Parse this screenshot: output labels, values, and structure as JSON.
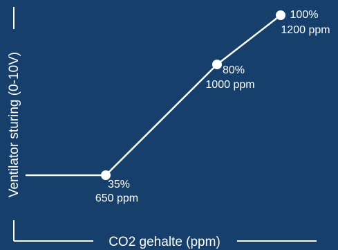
{
  "chart_data": {
    "type": "line",
    "title": "",
    "xlabel": "CO2 gehalte (ppm)",
    "ylabel": "Ventilator sturing (0-10V)",
    "grid": false,
    "legend": "none",
    "x_visible_range": [
      400,
      1200
    ],
    "y_range": [
      0,
      100
    ],
    "series": [
      {
        "x": [
          400,
          650,
          1000,
          1200
        ],
        "y": [
          35,
          35,
          80,
          100
        ]
      }
    ],
    "labels": [
      {
        "x": 650,
        "y": 35,
        "line1": "35%",
        "line2": "650 ppm"
      },
      {
        "x": 1000,
        "y": 80,
        "line1": "80%",
        "line2": "1000 ppm"
      },
      {
        "x": 1200,
        "y": 100,
        "line1": "100%",
        "line2": "1200 ppm"
      }
    ],
    "colors": {
      "background": "#16406b",
      "line": "#ffffff",
      "text": "#ffffff"
    }
  }
}
